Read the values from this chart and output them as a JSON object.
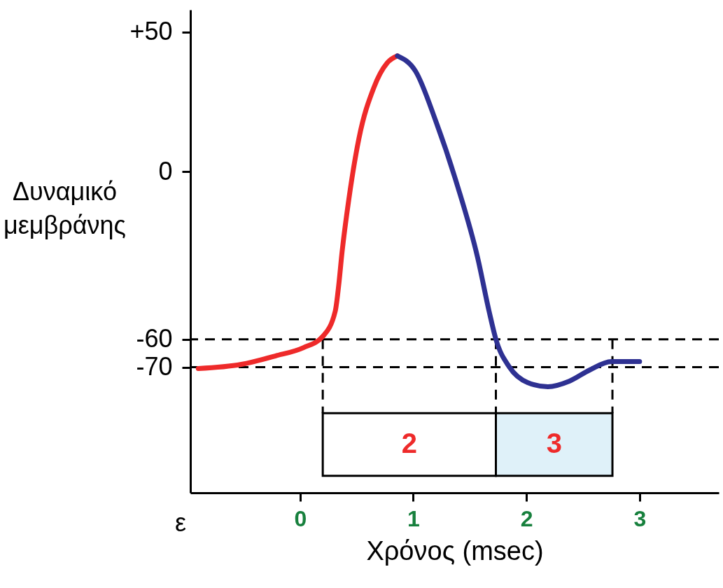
{
  "chart_data": {
    "type": "line",
    "xlabel": "Χρόνος (msec)",
    "ylabel": "Δυναμικό μεμβράνης",
    "xlim": [
      -0.97,
      3.7
    ],
    "xticks": [
      0,
      1,
      2,
      3
    ],
    "ylim": [
      -115,
      58
    ],
    "yticks": [
      {
        "value": 50,
        "label": "+50"
      },
      0,
      -60,
      -70
    ],
    "series": [
      {
        "color": "#ee2a2a",
        "x": [
          -0.9,
          -0.52,
          -0.22,
          0.03,
          0.2,
          0.31,
          0.34,
          0.37,
          0.43,
          0.52,
          0.65,
          0.77,
          0.86
        ],
        "values": [
          -70.5,
          -69,
          -66,
          -63,
          -59,
          -50,
          -41,
          -29,
          -10,
          12,
          30,
          39,
          41.5
        ]
      },
      {
        "color": "#2e3192",
        "x": [
          0.86,
          1.02,
          1.2,
          1.39,
          1.57,
          1.67,
          1.73,
          1.85,
          2.01,
          2.19,
          2.38,
          2.56,
          2.75,
          3.0
        ],
        "values": [
          41.5,
          36,
          18,
          -5,
          -31,
          -50,
          -60,
          -70,
          -75.5,
          -77,
          -75,
          -71,
          -68,
          -68
        ]
      }
    ],
    "ref_lines": [
      {
        "axis": "y",
        "value": -60,
        "line_style": "dashed"
      },
      {
        "axis": "y",
        "value": -70,
        "line_style": "dashed"
      },
      {
        "axis": "x",
        "value": 0.2,
        "line_style": "dashed"
      },
      {
        "axis": "x",
        "value": 1.73,
        "line_style": "dashed"
      },
      {
        "axis": "x",
        "value": 2.76,
        "line_style": "dashed"
      }
    ],
    "bands": [
      {
        "axis": "x",
        "from": 0.2,
        "to": 1.73,
        "label": "2",
        "color": "#ffffff"
      },
      {
        "axis": "x",
        "from": 1.73,
        "to": 2.76,
        "label": "3",
        "color": "#dff1f9"
      }
    ],
    "annotations": [
      "ε"
    ],
    "grid": false,
    "marker": "none",
    "line_style": "solid"
  }
}
